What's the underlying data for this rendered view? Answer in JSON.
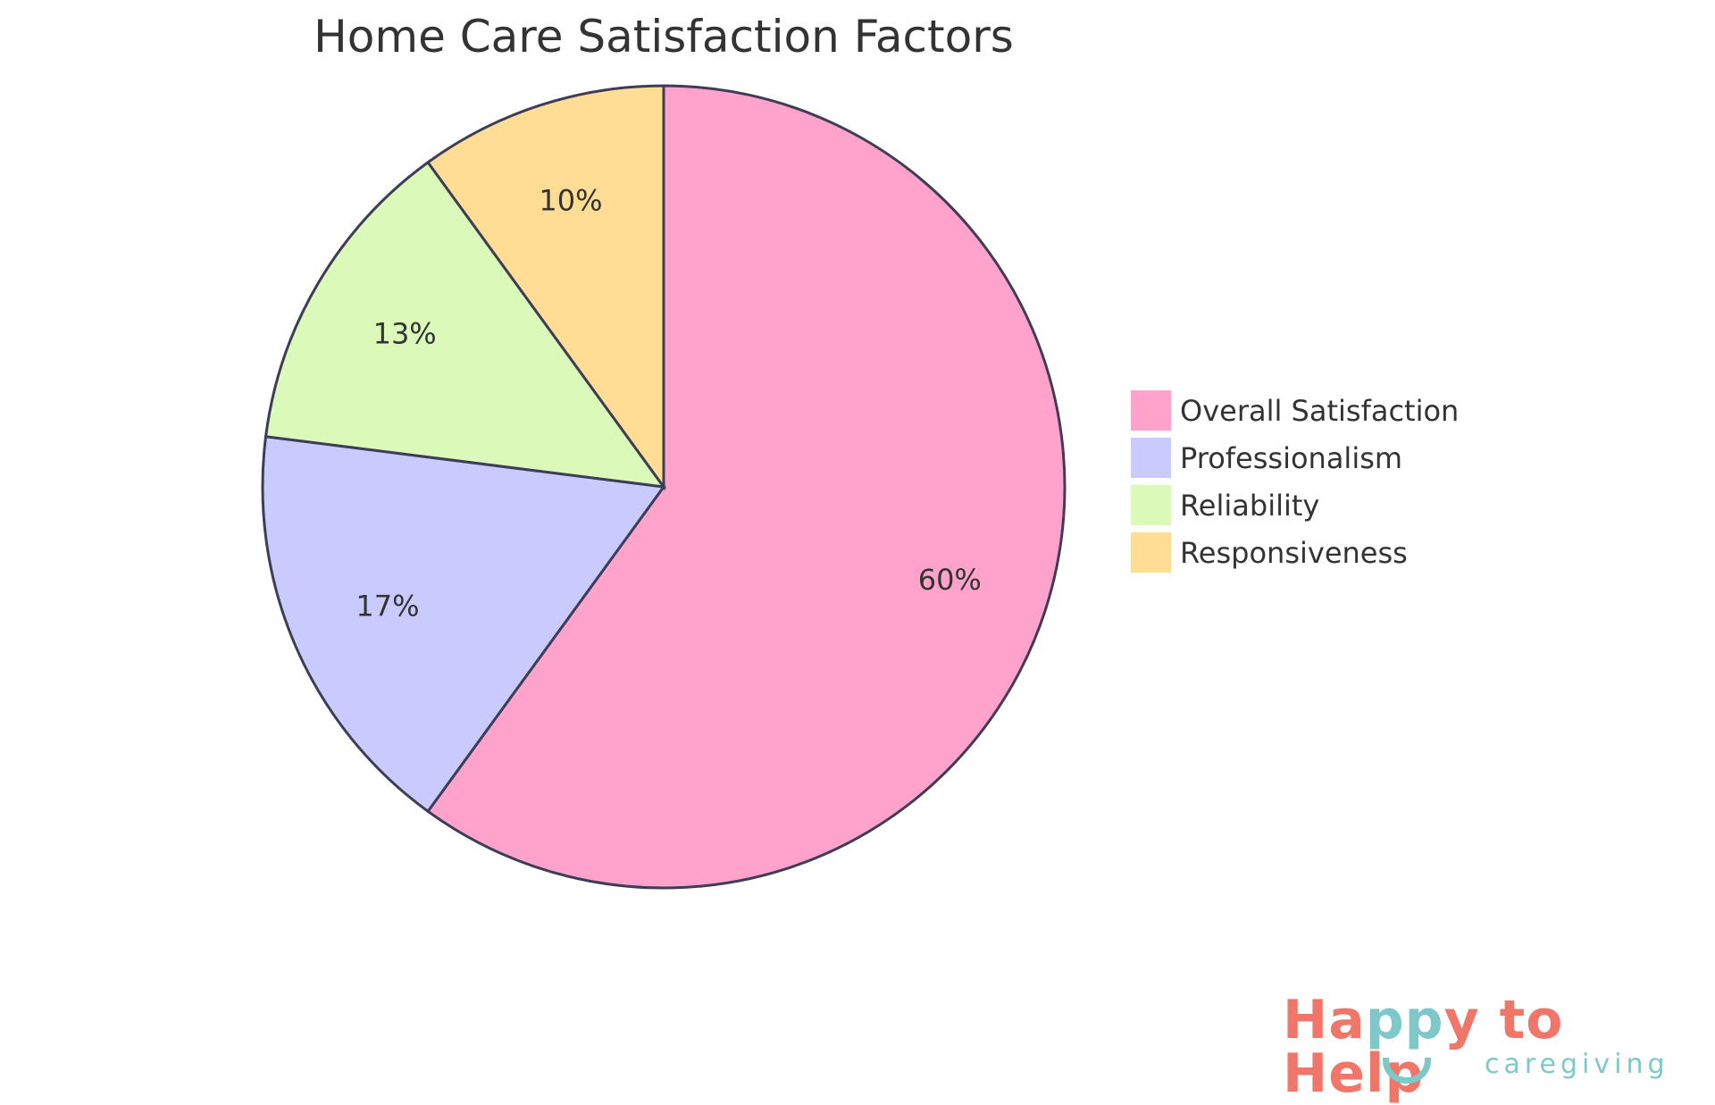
{
  "chart_data": {
    "type": "pie",
    "title": "Home Care Satisfaction Factors",
    "categories": [
      "Overall Satisfaction",
      "Professionalism",
      "Reliability",
      "Responsiveness"
    ],
    "values": [
      60,
      17,
      13,
      10
    ],
    "labels": [
      "60%",
      "17%",
      "13%",
      "10%"
    ],
    "colors": [
      "#ffa3cd",
      "#c9cbff",
      "#dbfab9",
      "#ffdd94"
    ],
    "stroke_color": "#3d3d55",
    "start": "top",
    "direction": "clockwise",
    "legend_placement": "right"
  },
  "logo": {
    "line1_a": "Ha",
    "line1_b": "pp",
    "line1_c": "y to Help",
    "line2": "caregiving",
    "colors": {
      "coral": "#ef7668",
      "teal": "#7ec8c9"
    }
  }
}
